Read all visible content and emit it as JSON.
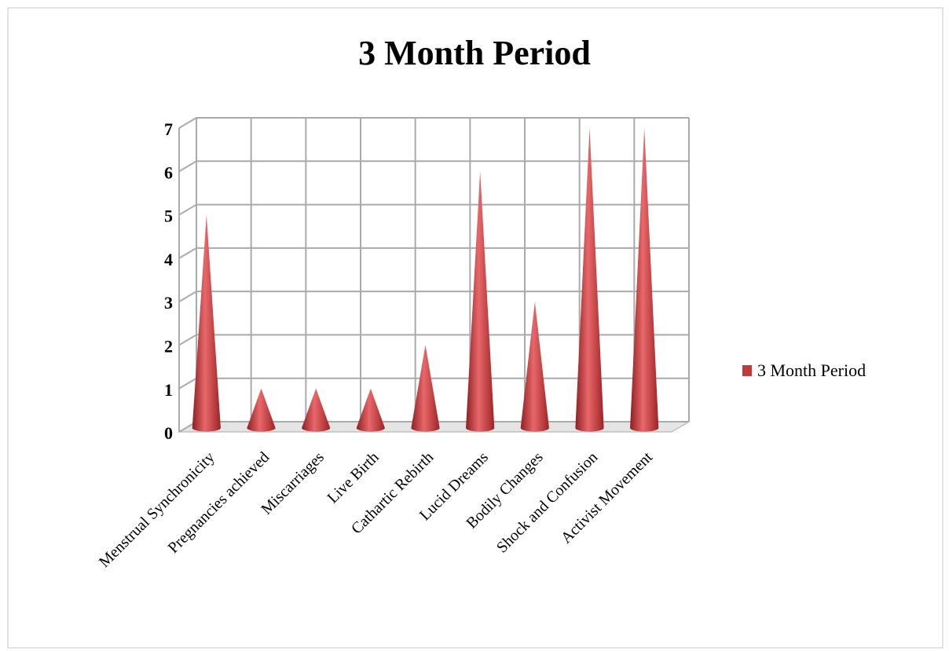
{
  "chart_data": {
    "type": "cone",
    "title": "3 Month Period",
    "categories": [
      "Menstrual Synchronicity",
      "Pregnancies achieved",
      "Miscarriages",
      "Live Birth",
      "Cathartic Rebirth",
      "Lucid Dreams",
      "Bodily Changes",
      "Shock and Confusion",
      "Activist Movement"
    ],
    "series": [
      {
        "name": "3 Month Period",
        "color": "#c0393b",
        "values": [
          5,
          1,
          1,
          1,
          2,
          6,
          3,
          7,
          7
        ]
      }
    ],
    "ylim": [
      0,
      7
    ],
    "yticks": [
      0,
      1,
      2,
      3,
      4,
      5,
      6,
      7
    ],
    "grid": true,
    "legend": "right"
  }
}
